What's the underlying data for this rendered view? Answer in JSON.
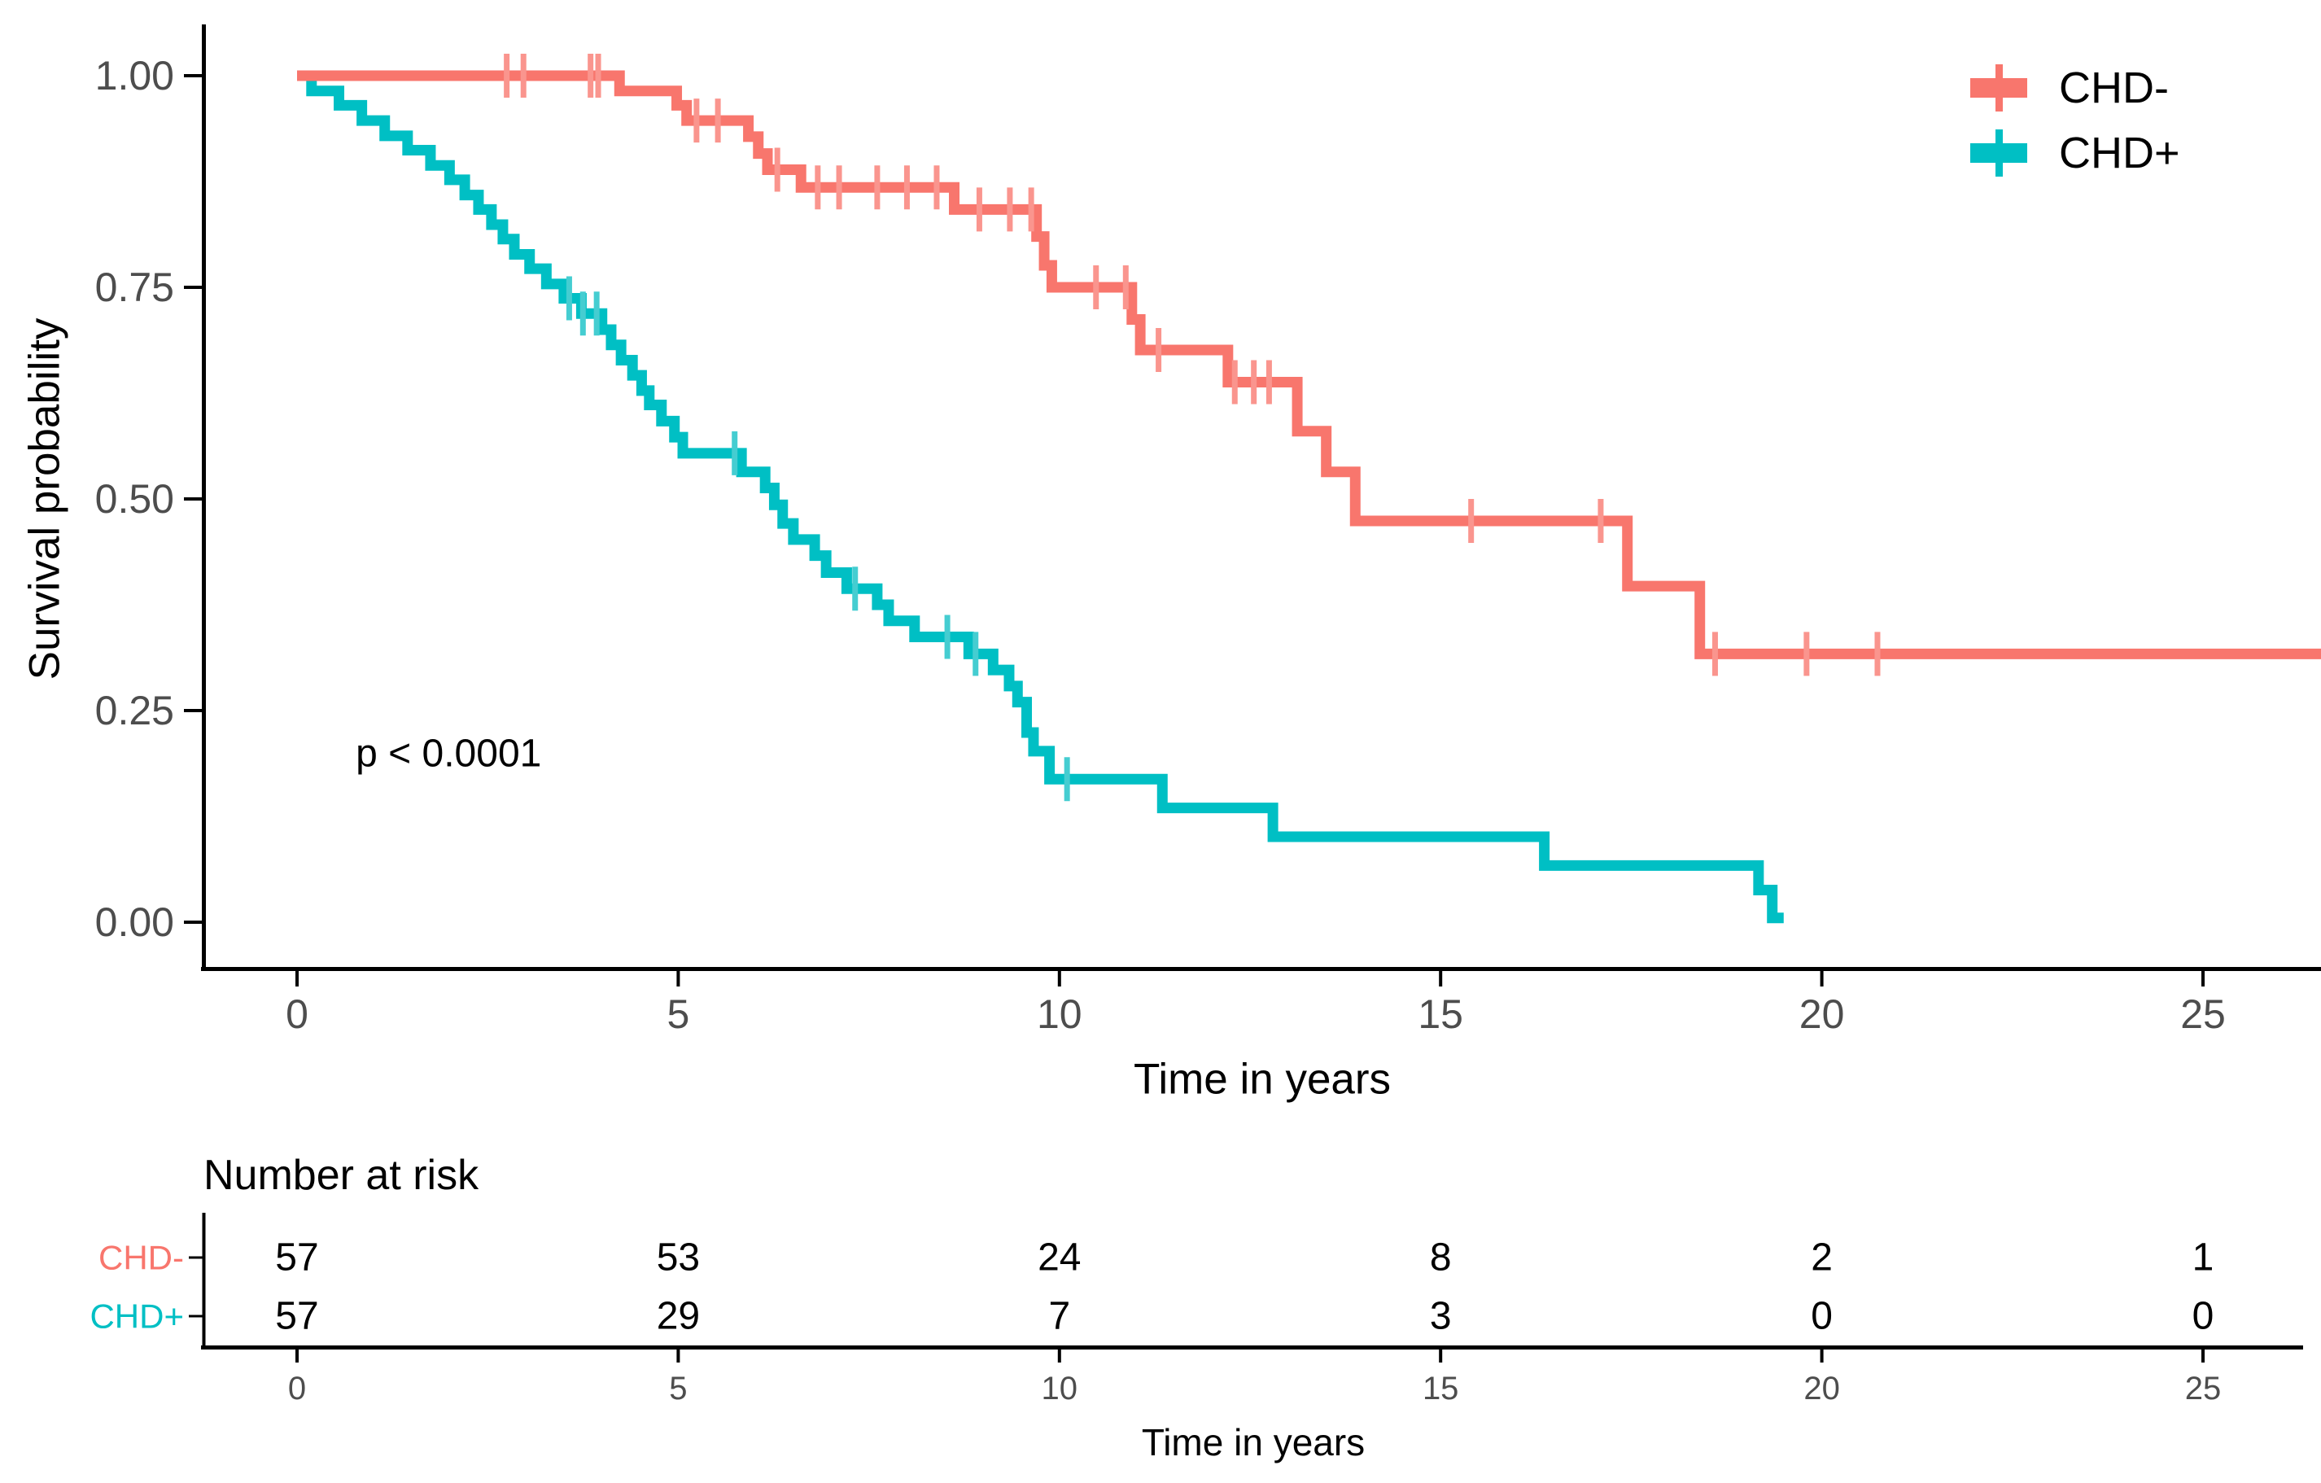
{
  "figure": {
    "background": "#ffffff",
    "axis_color": "#000000",
    "tick_label_color": "#4d4d4d"
  },
  "chart_data": {
    "type": "line",
    "subtype": "kaplan-meier-step-curves",
    "title": "",
    "xlabel": "Time in years",
    "ylabel": "Survival probability",
    "xlim": [
      -1.25,
      26.55
    ],
    "ylim": [
      0,
      1
    ],
    "grid": "off",
    "legend_position": "top-right-inside",
    "x_ticks": [
      {
        "value": 0,
        "label": "0"
      },
      {
        "value": 5,
        "label": "5"
      },
      {
        "value": 10,
        "label": "10"
      },
      {
        "value": 15,
        "label": "15"
      },
      {
        "value": 20,
        "label": "20"
      },
      {
        "value": 25,
        "label": "25"
      }
    ],
    "y_ticks": [
      {
        "value": 0.0,
        "label": "0.00"
      },
      {
        "value": 0.25,
        "label": "0.25"
      },
      {
        "value": 0.5,
        "label": "0.50"
      },
      {
        "value": 0.75,
        "label": "0.75"
      },
      {
        "value": 1.0,
        "label": "1.00"
      }
    ],
    "pvalue": {
      "text": "p < 0.0001",
      "x": 0.77,
      "y": 0.199
    },
    "series": [
      {
        "name": "CHD-",
        "color": "#F8766D",
        "censor_color": "#fa958e",
        "end_time": 26.55,
        "steps": [
          [
            0,
            1.0
          ],
          [
            4.23,
            0.982
          ],
          [
            4.98,
            0.965
          ],
          [
            5.11,
            0.947
          ],
          [
            5.92,
            0.928
          ],
          [
            6.05,
            0.908
          ],
          [
            6.17,
            0.889
          ],
          [
            6.61,
            0.868
          ],
          [
            8.62,
            0.842
          ],
          [
            9.7,
            0.81
          ],
          [
            9.8,
            0.776
          ],
          [
            9.9,
            0.75
          ],
          [
            10.95,
            0.712
          ],
          [
            11.06,
            0.676
          ],
          [
            12.21,
            0.638
          ],
          [
            13.12,
            0.58
          ],
          [
            13.5,
            0.532
          ],
          [
            13.88,
            0.474
          ],
          [
            17.45,
            0.397
          ],
          [
            18.4,
            0.317
          ]
        ],
        "censors": [
          [
            2.75,
            1.0
          ],
          [
            2.97,
            1.0
          ],
          [
            3.85,
            1.0
          ],
          [
            3.95,
            1.0
          ],
          [
            5.24,
            0.947
          ],
          [
            5.52,
            0.947
          ],
          [
            6.3,
            0.889
          ],
          [
            6.83,
            0.868
          ],
          [
            7.11,
            0.868
          ],
          [
            7.61,
            0.868
          ],
          [
            8.0,
            0.868
          ],
          [
            8.39,
            0.868
          ],
          [
            8.95,
            0.842
          ],
          [
            9.35,
            0.842
          ],
          [
            9.63,
            0.842
          ],
          [
            10.48,
            0.75
          ],
          [
            10.87,
            0.75
          ],
          [
            11.3,
            0.676
          ],
          [
            12.3,
            0.638
          ],
          [
            12.55,
            0.638
          ],
          [
            12.75,
            0.638
          ],
          [
            15.4,
            0.474
          ],
          [
            17.1,
            0.474
          ],
          [
            18.6,
            0.317
          ],
          [
            19.8,
            0.317
          ],
          [
            20.73,
            0.317
          ]
        ]
      },
      {
        "name": "CHD+",
        "color": "#00BFC4",
        "censor_color": "#45cdd1",
        "end_time": 19.5,
        "steps": [
          [
            0,
            1.0
          ],
          [
            0.19,
            0.982
          ],
          [
            0.55,
            0.965
          ],
          [
            0.85,
            0.947
          ],
          [
            1.15,
            0.929
          ],
          [
            1.45,
            0.912
          ],
          [
            1.75,
            0.894
          ],
          [
            2.0,
            0.877
          ],
          [
            2.2,
            0.859
          ],
          [
            2.38,
            0.842
          ],
          [
            2.55,
            0.824
          ],
          [
            2.7,
            0.807
          ],
          [
            2.85,
            0.789
          ],
          [
            3.05,
            0.772
          ],
          [
            3.27,
            0.754
          ],
          [
            3.5,
            0.737
          ],
          [
            3.73,
            0.719
          ],
          [
            4.0,
            0.7
          ],
          [
            4.12,
            0.682
          ],
          [
            4.25,
            0.664
          ],
          [
            4.4,
            0.646
          ],
          [
            4.52,
            0.628
          ],
          [
            4.62,
            0.611
          ],
          [
            4.78,
            0.592
          ],
          [
            4.95,
            0.573
          ],
          [
            5.06,
            0.554
          ],
          [
            5.83,
            0.532
          ],
          [
            6.14,
            0.513
          ],
          [
            6.26,
            0.493
          ],
          [
            6.37,
            0.471
          ],
          [
            6.51,
            0.452
          ],
          [
            6.79,
            0.433
          ],
          [
            6.94,
            0.413
          ],
          [
            7.21,
            0.394
          ],
          [
            7.61,
            0.375
          ],
          [
            7.76,
            0.356
          ],
          [
            8.1,
            0.337
          ],
          [
            8.81,
            0.317
          ],
          [
            9.13,
            0.298
          ],
          [
            9.34,
            0.279
          ],
          [
            9.45,
            0.26
          ],
          [
            9.57,
            0.224
          ],
          [
            9.66,
            0.202
          ],
          [
            9.87,
            0.169
          ],
          [
            11.35,
            0.135
          ],
          [
            12.8,
            0.101
          ],
          [
            16.36,
            0.067
          ],
          [
            19.17,
            0.038
          ],
          [
            19.35,
            0.005
          ]
        ],
        "censors": [
          [
            3.57,
            0.737
          ],
          [
            3.75,
            0.719
          ],
          [
            3.93,
            0.719
          ],
          [
            5.74,
            0.554
          ],
          [
            7.32,
            0.394
          ],
          [
            8.53,
            0.337
          ],
          [
            8.9,
            0.317
          ],
          [
            10.1,
            0.169
          ]
        ]
      }
    ],
    "risk_table": {
      "title": "Number at risk",
      "xlabel": "Time in years",
      "times": [
        0,
        5,
        10,
        15,
        20,
        25
      ],
      "rows": [
        {
          "label": "CHD-",
          "color": "#F8766D",
          "counts": [
            "57",
            "53",
            "24",
            "8",
            "2",
            "1"
          ]
        },
        {
          "label": "CHD+",
          "color": "#00BFC4",
          "counts": [
            "57",
            "29",
            "7",
            "3",
            "0",
            "0"
          ]
        }
      ]
    }
  }
}
